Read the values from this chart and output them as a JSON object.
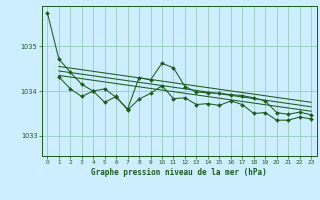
{
  "title": "Graphe pression niveau de la mer (hPa)",
  "background_color": "#cceeff",
  "grid_color": "#99ccbb",
  "line_color": "#1a5c1a",
  "x_ticks": [
    0,
    1,
    2,
    3,
    4,
    5,
    6,
    7,
    8,
    9,
    10,
    11,
    12,
    13,
    14,
    15,
    16,
    17,
    18,
    19,
    20,
    21,
    22,
    23
  ],
  "y_ticks": [
    1033,
    1034,
    1035
  ],
  "ylim": [
    1032.55,
    1035.9
  ],
  "xlim": [
    -0.5,
    23.5
  ],
  "series1_x": [
    0,
    1,
    2,
    3,
    4,
    5,
    6,
    7,
    8,
    9,
    10,
    11,
    12,
    13,
    14,
    15,
    16,
    17,
    18,
    19,
    20,
    21,
    22,
    23
  ],
  "series1_y": [
    1035.75,
    1034.72,
    1034.42,
    1034.15,
    1034.0,
    1034.05,
    1033.86,
    1033.6,
    1034.3,
    1034.25,
    1034.62,
    1034.52,
    1034.1,
    1033.98,
    1033.96,
    1033.95,
    1033.92,
    1033.9,
    1033.85,
    1033.78,
    1033.52,
    1033.48,
    1033.53,
    1033.47
  ],
  "series2_x": [
    1,
    2,
    3,
    4,
    5,
    6,
    7,
    8,
    9,
    10,
    11,
    12,
    13,
    14,
    15,
    16,
    17,
    18,
    19,
    20,
    21,
    22,
    23
  ],
  "series2_y": [
    1034.32,
    1034.05,
    1033.88,
    1034.0,
    1033.75,
    1033.88,
    1033.58,
    1033.82,
    1033.95,
    1034.12,
    1033.83,
    1033.85,
    1033.7,
    1033.72,
    1033.68,
    1033.78,
    1033.7,
    1033.5,
    1033.52,
    1033.35,
    1033.35,
    1033.42,
    1033.38
  ],
  "trend1_x": [
    1,
    23
  ],
  "trend1_y": [
    1034.55,
    1033.75
  ],
  "trend2_x": [
    1,
    23
  ],
  "trend2_y": [
    1034.45,
    1033.65
  ],
  "trend3_x": [
    1,
    23
  ],
  "trend3_y": [
    1034.35,
    1033.55
  ]
}
